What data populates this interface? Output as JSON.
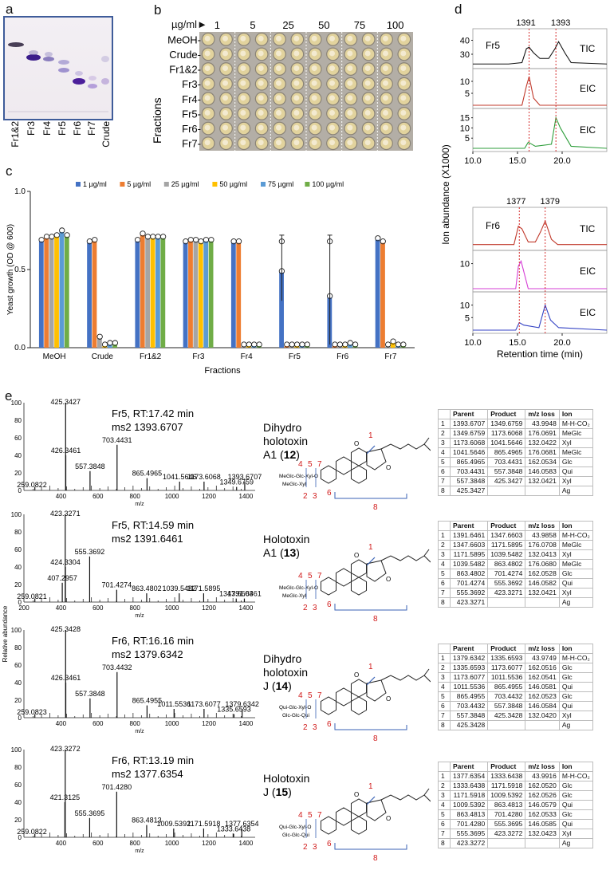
{
  "panel_labels": {
    "a": "a",
    "b": "b",
    "c": "c",
    "d": "d",
    "e": "e"
  },
  "panel_a": {
    "lanes": [
      "Fr1&2",
      "Fr3",
      "Fr4",
      "Fr5",
      "Fr6",
      "Fr7",
      "Crude"
    ]
  },
  "panel_b": {
    "header": "µg/ml",
    "concentrations": [
      "1",
      "5",
      "25",
      "50",
      "75",
      "100"
    ],
    "rows": [
      "MeOH-",
      "Crude-",
      "Fr1&2-",
      "Fr3-",
      "Fr4-",
      "Fr5-",
      "Fr6-",
      "Fr7-"
    ],
    "ylabel": "Fractions"
  },
  "panel_d": {
    "fr5_peaks": [
      "1391",
      "1393"
    ],
    "fr6_peaks": [
      "1377",
      "1379"
    ],
    "fr5_label": "Fr5",
    "fr6_label": "Fr6",
    "tic": "TIC",
    "eic": "EIC",
    "ylabel": "Ion abundance (X1000)",
    "xlabel": "Retention time (min)"
  },
  "panel_e": {
    "spectra": [
      {
        "title": "Fr5, RT:17.42 min",
        "ms2": "ms2 1393.6707",
        "labels": [
          "425.3427",
          "426.3461",
          "557.3848",
          "703.4431",
          "865.4965",
          "1041.5646",
          "1173.6068",
          "1393.6707",
          "1349.6759",
          "259.0822"
        ]
      },
      {
        "title": "Fr5, RT:14.59 min",
        "ms2": "ms2 1391.6461",
        "labels": [
          "423.3271",
          "424.3304",
          "407.2957",
          "555.3692",
          "701.4274",
          "863.4802",
          "1039.5482",
          "1171.5895",
          "1391.6461",
          "1347.6603",
          "259.0821"
        ]
      },
      {
        "title": "Fr6, RT:16.16 min",
        "ms2": "ms2 1379.6342",
        "labels": [
          "425.3428",
          "426.3461",
          "557.3848",
          "703.4432",
          "865.4955",
          "1011.5536",
          "1173.6077",
          "1379.6342",
          "1335.6593",
          "259.0823"
        ]
      },
      {
        "title": "Fr6, RT:13.19 min",
        "ms2": "ms2 1377.6354",
        "labels": [
          "423.3272",
          "421.3125",
          "555.3695",
          "701.4280",
          "863.4813",
          "1009.5392",
          "1171.5918",
          "1377.6354",
          "1333.6438",
          "259.0822"
        ]
      }
    ],
    "yaxis_label": "Relative abundance",
    "xaxis_label": "m/z",
    "compounds": [
      {
        "line1": "Dihydro",
        "line2": "holotoxin",
        "line3": "A1 (",
        "num": "12",
        "close": ")",
        "sugars_top": "MeGlc-Glc-Xyl-O",
        "sugars_bot": "MeGlc-Xyl"
      },
      {
        "line1": "Holotoxin",
        "line2": "A1 (",
        "line3": "",
        "num": "13",
        "close": ")",
        "sugars_top": "MeGlc-Glc-Xyl-O",
        "sugars_bot": "MeGlc-Xyl"
      },
      {
        "line1": "Dihydro",
        "line2": "holotoxin",
        "line3": "J (",
        "num": "14",
        "close": ")",
        "sugars_top": "Qui-Glc-Xyl-O",
        "sugars_bot": "Glc-Glc-Qui"
      },
      {
        "line1": "Holotoxin",
        "line2": "J (",
        "line3": "",
        "num": "15",
        "close": ")",
        "sugars_top": "Qui-Glc-Xyl-O",
        "sugars_bot": "Glc-Glc-Qui"
      }
    ],
    "table_headers": [
      "Parent",
      "Product",
      "m/z loss",
      "Ion"
    ],
    "tables": [
      [
        [
          "1",
          "1393.6707",
          "1349.6759",
          "43.9948",
          "M-H-CO₂"
        ],
        [
          "2",
          "1349.6759",
          "1173.6068",
          "176.0691",
          "MeGlc"
        ],
        [
          "3",
          "1173.6068",
          "1041.5646",
          "132.0422",
          "Xyl"
        ],
        [
          "4",
          "1041.5646",
          "865.4965",
          "176.0681",
          "MeGlc"
        ],
        [
          "5",
          "865.4965",
          "703.4431",
          "162.0534",
          "Glc"
        ],
        [
          "6",
          "703.4431",
          "557.3848",
          "146.0583",
          "Qui"
        ],
        [
          "7",
          "557.3848",
          "425.3427",
          "132.0421",
          "Xyl"
        ],
        [
          "8",
          "425.3427",
          "",
          "",
          "Ag"
        ]
      ],
      [
        [
          "1",
          "1391.6461",
          "1347.6603",
          "43.9858",
          "M-H-CO₂"
        ],
        [
          "2",
          "1347.6603",
          "1171.5895",
          "176.0708",
          "MeGlc"
        ],
        [
          "3",
          "1171.5895",
          "1039.5482",
          "132.0413",
          "Xyl"
        ],
        [
          "4",
          "1039.5482",
          "863.4802",
          "176.0680",
          "MeGlc"
        ],
        [
          "5",
          "863.4802",
          "701.4274",
          "162.0528",
          "Glc"
        ],
        [
          "6",
          "701.4274",
          "555.3692",
          "146.0582",
          "Qui"
        ],
        [
          "7",
          "555.3692",
          "423.3271",
          "132.0421",
          "Xyl"
        ],
        [
          "8",
          "423.3271",
          "",
          "",
          "Ag"
        ]
      ],
      [
        [
          "1",
          "1379.6342",
          "1335.6593",
          "43.9749",
          "M-H-CO₂"
        ],
        [
          "2",
          "1335.6593",
          "1173.6077",
          "162.0516",
          "Glc"
        ],
        [
          "3",
          "1173.6077",
          "1011.5536",
          "162.0541",
          "Glc"
        ],
        [
          "4",
          "1011.5536",
          "865.4955",
          "146.0581",
          "Qui"
        ],
        [
          "5",
          "865.4955",
          "703.4432",
          "162.0523",
          "Glc"
        ],
        [
          "6",
          "703.4432",
          "557.3848",
          "146.0584",
          "Qui"
        ],
        [
          "7",
          "557.3848",
          "425.3428",
          "132.0420",
          "Xyl"
        ],
        [
          "8",
          "425.3428",
          "",
          "",
          "Ag"
        ]
      ],
      [
        [
          "1",
          "1377.6354",
          "1333.6438",
          "43.9916",
          "M-H-CO₂"
        ],
        [
          "2",
          "1333.6438",
          "1171.5918",
          "162.0520",
          "Glc"
        ],
        [
          "3",
          "1171.5918",
          "1009.5392",
          "162.0526",
          "Glc"
        ],
        [
          "4",
          "1009.5392",
          "863.4813",
          "146.0579",
          "Qui"
        ],
        [
          "5",
          "863.4813",
          "701.4280",
          "162.0533",
          "Glc"
        ],
        [
          "6",
          "701.4280",
          "555.3695",
          "146.0585",
          "Qui"
        ],
        [
          "7",
          "555.3695",
          "423.3272",
          "132.0423",
          "Xyl"
        ],
        [
          "8",
          "423.3272",
          "",
          "",
          "Ag"
        ]
      ]
    ]
  },
  "chart_data": [
    {
      "type": "bar",
      "title": "",
      "xlabel": "Fractions",
      "ylabel": "Yeast growth (OD @ 600)",
      "ylim": [
        0,
        1.0
      ],
      "yticks": [
        "0.0",
        "0.5",
        "1.0"
      ],
      "categories": [
        "MeOH",
        "Crude",
        "Fr1&2",
        "Fr3",
        "Fr4",
        "Fr5",
        "Fr6",
        "Fr7"
      ],
      "legend_position": "top",
      "series": [
        {
          "name": "1 µg/ml",
          "color": "#4472c4",
          "values": [
            0.68,
            0.67,
            0.68,
            0.67,
            0.67,
            0.48,
            0.32,
            0.69
          ]
        },
        {
          "name": "5 µg/ml",
          "color": "#ed7d31",
          "values": [
            0.7,
            0.68,
            0.72,
            0.68,
            0.67,
            0.01,
            0.01,
            0.67
          ]
        },
        {
          "name": "25 µg/ml",
          "color": "#a5a5a5",
          "values": [
            0.7,
            0.06,
            0.7,
            0.68,
            0.01,
            0.01,
            0.01,
            0.01
          ]
        },
        {
          "name": "50 µg/ml",
          "color": "#ffc000",
          "values": [
            0.71,
            0.01,
            0.7,
            0.67,
            0.01,
            0.01,
            0.01,
            0.03
          ]
        },
        {
          "name": "75 µgml",
          "color": "#5b9bd5",
          "values": [
            0.74,
            0.02,
            0.7,
            0.68,
            0.01,
            0.01,
            0.02,
            0.01
          ]
        },
        {
          "name": "100 µg/ml",
          "color": "#70ad47",
          "values": [
            0.71,
            0.02,
            0.7,
            0.68,
            0.01,
            0.01,
            0.01,
            0.01
          ]
        }
      ]
    },
    {
      "type": "line",
      "title": "Fr5",
      "xlabel": "Retention time (min)",
      "ylabel": "Ion abundance (X1000)",
      "xlim": [
        10,
        25
      ],
      "xticks": [
        "10.0",
        "15.0",
        "20.0"
      ],
      "traces": [
        {
          "name": "TIC",
          "color": "#111111",
          "yticks": [
            "30",
            "40"
          ],
          "ylim": [
            22,
            46
          ],
          "x": [
            10,
            14,
            15.5,
            16.0,
            16.3,
            16.8,
            17.5,
            18.5,
            19.2,
            19.6,
            20.3,
            21,
            25
          ],
          "y": [
            23,
            23,
            24,
            34,
            35,
            31,
            27,
            27,
            34,
            39,
            31,
            24,
            23
          ]
        },
        {
          "name": "EIC",
          "color": "#c0392b",
          "yticks": [
            "5",
            "10"
          ],
          "ylim": [
            0,
            14
          ],
          "x": [
            10,
            15.5,
            16.0,
            16.3,
            16.8,
            17.5,
            25
          ],
          "y": [
            0,
            0,
            8,
            12,
            3,
            0,
            0
          ]
        },
        {
          "name": "EIC",
          "color": "#2e9e3b",
          "yticks": [
            "5",
            "10",
            "15"
          ],
          "ylim": [
            0,
            18
          ],
          "x": [
            10,
            15.8,
            16.2,
            17,
            18.8,
            19.3,
            19.8,
            21,
            25
          ],
          "y": [
            0,
            0,
            3,
            1,
            2,
            15,
            10,
            1,
            0
          ]
        }
      ]
    },
    {
      "type": "line",
      "title": "Fr6",
      "xlabel": "Retention time (min)",
      "ylabel": "Ion abundance (X1000)",
      "xlim": [
        10,
        25
      ],
      "xticks": [
        "10.0",
        "15.0",
        "20.0"
      ],
      "traces": [
        {
          "name": "TIC",
          "color": "#c0392b",
          "yticks": [],
          "ylim": [
            0,
            14
          ],
          "x": [
            10,
            14.6,
            15.1,
            15.5,
            16.2,
            17,
            17.6,
            18.1,
            18.8,
            19.5,
            25
          ],
          "y": [
            1,
            1,
            8,
            7,
            2,
            2,
            6,
            10,
            3,
            1,
            1
          ]
        },
        {
          "name": "EIC",
          "color": "#d63fd6",
          "yticks": [
            "10"
          ],
          "ylim": [
            0,
            14
          ],
          "x": [
            10,
            14.8,
            15.1,
            15.4,
            16.2,
            25
          ],
          "y": [
            0,
            0,
            9,
            11,
            0,
            0
          ]
        },
        {
          "name": "EIC",
          "color": "#3342c4",
          "yticks": [
            "5",
            "10"
          ],
          "ylim": [
            0,
            14
          ],
          "x": [
            10,
            14.8,
            15.2,
            15.7,
            17.4,
            18.1,
            18.7,
            19.6,
            25
          ],
          "y": [
            0,
            0,
            3,
            2,
            1,
            10,
            4,
            1,
            0
          ]
        }
      ]
    }
  ]
}
